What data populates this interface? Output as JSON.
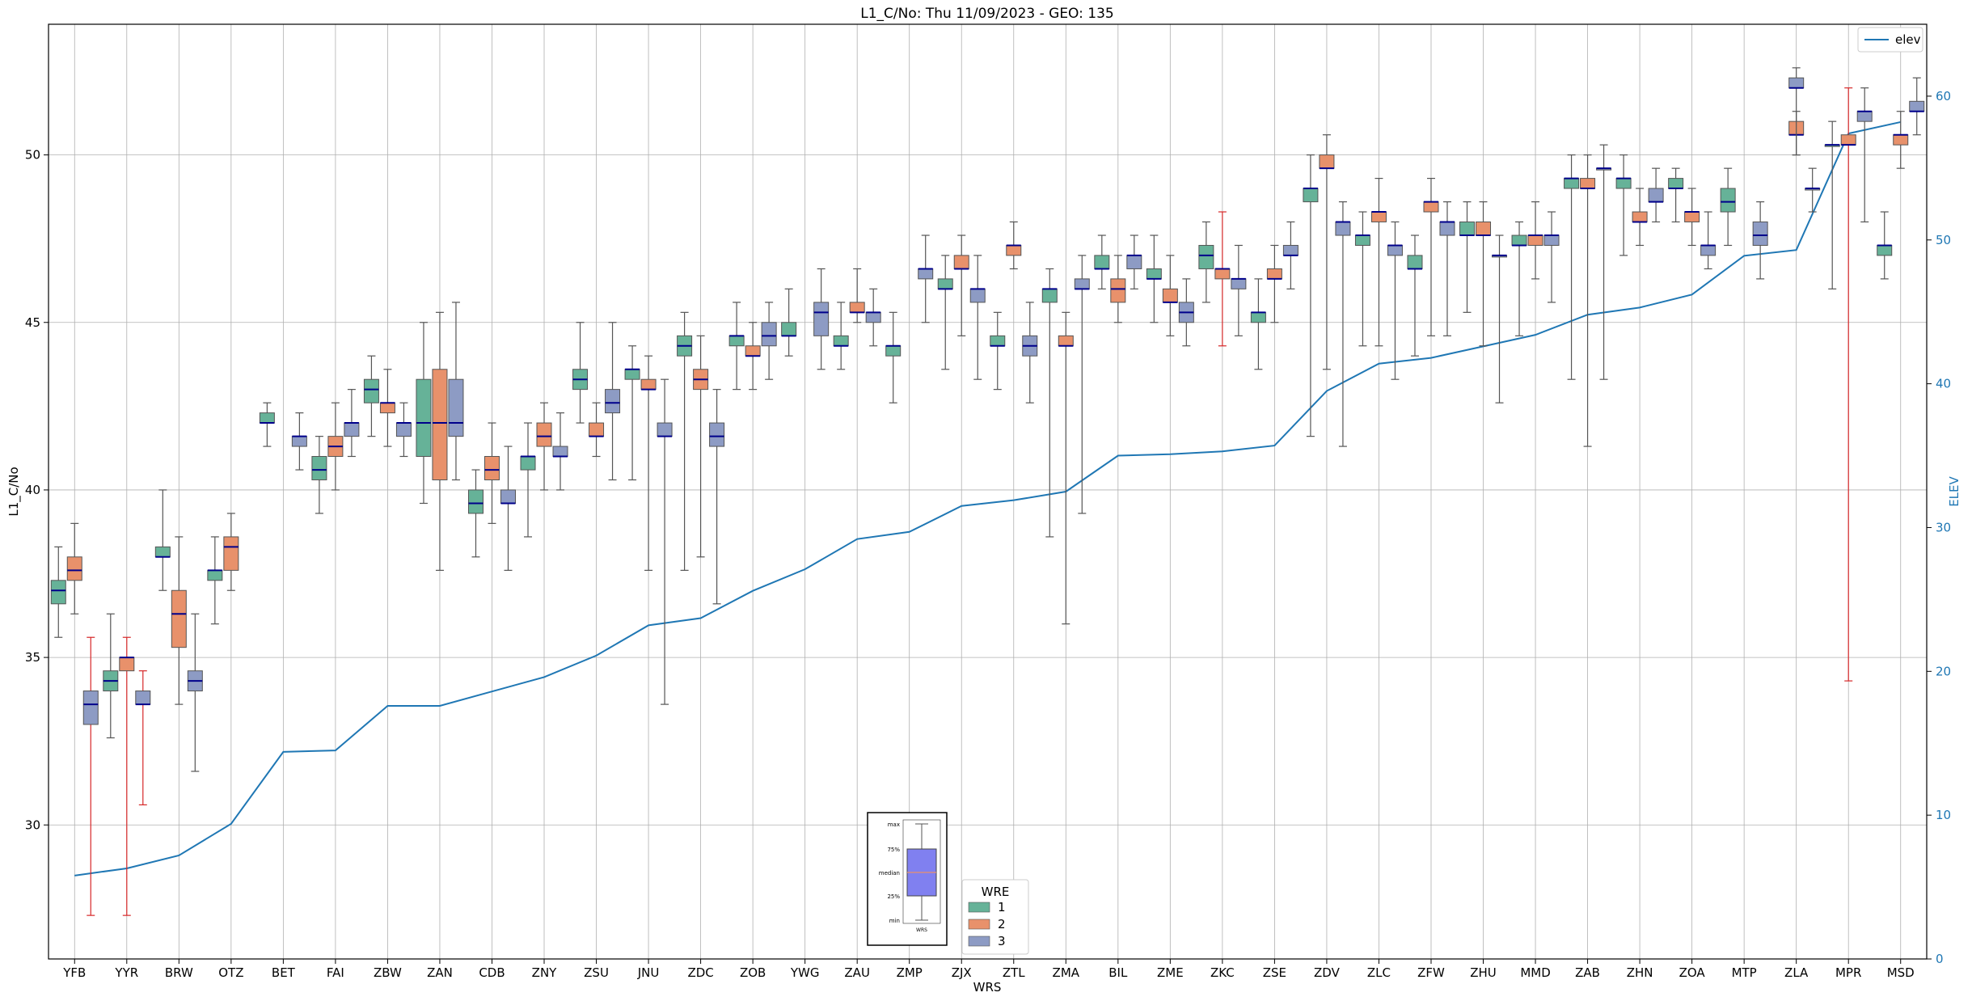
{
  "chart_data": {
    "type": "box",
    "title": "L1_C/No: Thu 11/09/2023 - GEO: 135",
    "xlabel": "WRS",
    "ylabel": "L1_C/No",
    "y2label": "ELEV",
    "ylim": [
      26.0,
      53.9
    ],
    "y2lim": [
      0,
      65
    ],
    "yticks": [
      30,
      35,
      40,
      45,
      50
    ],
    "y2ticks": [
      0,
      10,
      20,
      30,
      40,
      50,
      60
    ],
    "grid": true,
    "colors": {
      "wre1": "#66b298",
      "wre2": "#e8916b",
      "wre3": "#8d9bc4",
      "elev": "#1f77b4",
      "median": "#00008b",
      "whisker": "#555555",
      "whisker_alt": "#d62728"
    },
    "categories": [
      "YFB",
      "YYR",
      "BRW",
      "OTZ",
      "BET",
      "FAI",
      "ZBW",
      "ZAN",
      "CDB",
      "ZNY",
      "ZSU",
      "JNU",
      "ZDC",
      "ZOB",
      "YWG",
      "ZAU",
      "ZMP",
      "ZJX",
      "ZTL",
      "ZMA",
      "BIL",
      "ZME",
      "ZKC",
      "ZSE",
      "ZDV",
      "ZLC",
      "ZFW",
      "ZHU",
      "MMD",
      "ZAB",
      "ZHN",
      "ZOA",
      "MTP",
      "ZLA",
      "MPR",
      "MSD"
    ],
    "elev": [
      5.8,
      6.3,
      7.2,
      9.4,
      14.4,
      14.5,
      17.6,
      17.6,
      18.6,
      19.6,
      21.1,
      23.2,
      23.7,
      25.6,
      27.1,
      29.2,
      29.7,
      31.5,
      31.9,
      32.5,
      35.0,
      35.1,
      35.3,
      35.7,
      39.5,
      41.4,
      41.8,
      42.6,
      43.4,
      44.8,
      45.3,
      46.2,
      48.9,
      49.3,
      57.4,
      58.2
    ],
    "series": [
      {
        "name": "1",
        "boxes": [
          {
            "cat": 0,
            "min": 35.6,
            "q1": 36.6,
            "med": 37.0,
            "q3": 37.3,
            "max": 38.3
          },
          {
            "cat": 1,
            "min": 32.6,
            "q1": 34.0,
            "med": 34.3,
            "q3": 34.6,
            "max": 36.3
          },
          {
            "cat": 2,
            "min": 37.0,
            "q1": 38.0,
            "med": 38.0,
            "q3": 38.3,
            "max": 40.0
          },
          {
            "cat": 3,
            "min": 36.0,
            "q1": 37.3,
            "med": 37.6,
            "q3": 37.6,
            "max": 38.6
          },
          {
            "cat": 4,
            "min": 41.3,
            "q1": 42.0,
            "med": 42.0,
            "q3": 42.3,
            "max": 42.6
          },
          {
            "cat": 5,
            "min": 39.3,
            "q1": 40.3,
            "med": 40.6,
            "q3": 41.0,
            "max": 41.6
          },
          {
            "cat": 6,
            "min": 41.6,
            "q1": 42.6,
            "med": 43.0,
            "q3": 43.3,
            "max": 44.0
          },
          {
            "cat": 7,
            "min": 39.6,
            "q1": 41.0,
            "med": 42.0,
            "q3": 43.3,
            "max": 45.0
          },
          {
            "cat": 8,
            "min": 38.0,
            "q1": 39.3,
            "med": 39.6,
            "q3": 40.0,
            "max": 40.6
          },
          {
            "cat": 9,
            "min": 38.6,
            "q1": 40.6,
            "med": 41.0,
            "q3": 41.0,
            "max": 42.0
          },
          {
            "cat": 10,
            "min": 42.0,
            "q1": 43.0,
            "med": 43.3,
            "q3": 43.6,
            "max": 45.0
          },
          {
            "cat": 11,
            "min": 40.3,
            "q1": 43.3,
            "med": 43.6,
            "q3": 43.6,
            "max": 44.3
          },
          {
            "cat": 12,
            "min": 37.6,
            "q1": 44.0,
            "med": 44.3,
            "q3": 44.6,
            "max": 45.3
          },
          {
            "cat": 13,
            "min": 43.0,
            "q1": 44.3,
            "med": 44.6,
            "q3": 44.6,
            "max": 45.6
          },
          {
            "cat": 14,
            "min": 44.0,
            "q1": 44.6,
            "med": 44.6,
            "q3": 45.0,
            "max": 46.0
          },
          {
            "cat": 15,
            "min": 43.6,
            "q1": 44.3,
            "med": 44.3,
            "q3": 44.6,
            "max": 45.6
          },
          {
            "cat": 16,
            "min": 42.6,
            "q1": 44.0,
            "med": 44.3,
            "q3": 44.3,
            "max": 45.3
          },
          {
            "cat": 17,
            "min": 43.6,
            "q1": 46.0,
            "med": 46.0,
            "q3": 46.3,
            "max": 47.0
          },
          {
            "cat": 18,
            "min": 43.0,
            "q1": 44.3,
            "med": 44.3,
            "q3": 44.6,
            "max": 45.3
          },
          {
            "cat": 19,
            "min": 38.6,
            "q1": 45.6,
            "med": 46.0,
            "q3": 46.0,
            "max": 46.6
          },
          {
            "cat": 20,
            "min": 46.0,
            "q1": 46.6,
            "med": 46.6,
            "q3": 47.0,
            "max": 47.6
          },
          {
            "cat": 21,
            "min": 45.0,
            "q1": 46.3,
            "med": 46.3,
            "q3": 46.6,
            "max": 47.6
          },
          {
            "cat": 22,
            "min": 45.6,
            "q1": 46.6,
            "med": 47.0,
            "q3": 47.3,
            "max": 48.0
          },
          {
            "cat": 23,
            "min": 43.6,
            "q1": 45.0,
            "med": 45.3,
            "q3": 45.3,
            "max": 46.3
          },
          {
            "cat": 24,
            "min": 41.6,
            "q1": 48.6,
            "med": 49.0,
            "q3": 49.0,
            "max": 50.0
          },
          {
            "cat": 25,
            "min": 44.3,
            "q1": 47.3,
            "med": 47.6,
            "q3": 47.6,
            "max": 48.3
          },
          {
            "cat": 26,
            "min": 44.0,
            "q1": 46.6,
            "med": 46.6,
            "q3": 47.0,
            "max": 47.6
          },
          {
            "cat": 27,
            "min": 45.3,
            "q1": 47.6,
            "med": 47.6,
            "q3": 48.0,
            "max": 48.6
          },
          {
            "cat": 28,
            "min": 44.6,
            "q1": 47.3,
            "med": 47.3,
            "q3": 47.6,
            "max": 48.0
          },
          {
            "cat": 29,
            "min": 43.3,
            "q1": 49.0,
            "med": 49.3,
            "q3": 49.3,
            "max": 50.0
          },
          {
            "cat": 30,
            "min": 47.0,
            "q1": 49.0,
            "med": 49.3,
            "q3": 49.3,
            "max": 50.0
          },
          {
            "cat": 31,
            "min": 48.0,
            "q1": 49.0,
            "med": 49.0,
            "q3": 49.3,
            "max": 49.6
          },
          {
            "cat": 32,
            "min": 47.3,
            "q1": 48.3,
            "med": 48.6,
            "q3": 49.0,
            "max": 49.6
          },
          {
            "cat": 34,
            "min": 46.0,
            "q1": 50.3,
            "med": 50.3,
            "q3": 50.3,
            "max": 51.0
          },
          {
            "cat": 35,
            "min": 46.3,
            "q1": 47.0,
            "med": 47.3,
            "q3": 47.3,
            "max": 48.3
          }
        ]
      },
      {
        "name": "2",
        "boxes": [
          {
            "cat": 0,
            "min": 36.3,
            "q1": 37.3,
            "med": 37.6,
            "q3": 38.0,
            "max": 39.0
          },
          {
            "cat": 1,
            "min": 27.3,
            "q1": 34.6,
            "med": 35.0,
            "q3": 35.0,
            "max": 35.6,
            "alt": true
          },
          {
            "cat": 2,
            "min": 33.6,
            "q1": 35.3,
            "med": 36.3,
            "q3": 37.0,
            "max": 38.6
          },
          {
            "cat": 3,
            "min": 37.0,
            "q1": 37.6,
            "med": 38.3,
            "q3": 38.6,
            "max": 39.3
          },
          {
            "cat": 5,
            "min": 40.0,
            "q1": 41.0,
            "med": 41.3,
            "q3": 41.6,
            "max": 42.6
          },
          {
            "cat": 6,
            "min": 41.3,
            "q1": 42.3,
            "med": 42.6,
            "q3": 42.6,
            "max": 43.6
          },
          {
            "cat": 7,
            "min": 37.6,
            "q1": 40.3,
            "med": 42.0,
            "q3": 43.6,
            "max": 45.3
          },
          {
            "cat": 8,
            "min": 39.0,
            "q1": 40.3,
            "med": 40.6,
            "q3": 41.0,
            "max": 42.0
          },
          {
            "cat": 9,
            "min": 40.0,
            "q1": 41.3,
            "med": 41.6,
            "q3": 42.0,
            "max": 42.6
          },
          {
            "cat": 10,
            "min": 41.0,
            "q1": 41.6,
            "med": 41.6,
            "q3": 42.0,
            "max": 42.6
          },
          {
            "cat": 11,
            "min": 37.6,
            "q1": 43.0,
            "med": 43.0,
            "q3": 43.3,
            "max": 44.0
          },
          {
            "cat": 12,
            "min": 38.0,
            "q1": 43.0,
            "med": 43.3,
            "q3": 43.6,
            "max": 44.6
          },
          {
            "cat": 13,
            "min": 43.0,
            "q1": 44.0,
            "med": 44.0,
            "q3": 44.3,
            "max": 45.0
          },
          {
            "cat": 15,
            "min": 45.0,
            "q1": 45.3,
            "med": 45.3,
            "q3": 45.6,
            "max": 46.6
          },
          {
            "cat": 17,
            "min": 44.6,
            "q1": 46.6,
            "med": 46.6,
            "q3": 47.0,
            "max": 47.6
          },
          {
            "cat": 18,
            "min": 46.6,
            "q1": 47.0,
            "med": 47.3,
            "q3": 47.3,
            "max": 48.0
          },
          {
            "cat": 19,
            "min": 36.0,
            "q1": 44.3,
            "med": 44.3,
            "q3": 44.6,
            "max": 45.3
          },
          {
            "cat": 20,
            "min": 45.0,
            "q1": 45.6,
            "med": 46.0,
            "q3": 46.3,
            "max": 47.0
          },
          {
            "cat": 21,
            "min": 44.6,
            "q1": 45.6,
            "med": 45.6,
            "q3": 46.0,
            "max": 47.0
          },
          {
            "cat": 22,
            "min": 44.3,
            "q1": 46.3,
            "med": 46.6,
            "q3": 46.6,
            "max": 48.3,
            "alt": true
          },
          {
            "cat": 23,
            "min": 45.0,
            "q1": 46.3,
            "med": 46.3,
            "q3": 46.6,
            "max": 47.3
          },
          {
            "cat": 24,
            "min": 43.6,
            "q1": 49.6,
            "med": 49.6,
            "q3": 50.0,
            "max": 50.6
          },
          {
            "cat": 25,
            "min": 44.3,
            "q1": 48.0,
            "med": 48.3,
            "q3": 48.3,
            "max": 49.3
          },
          {
            "cat": 26,
            "min": 44.6,
            "q1": 48.3,
            "med": 48.6,
            "q3": 48.6,
            "max": 49.3
          },
          {
            "cat": 27,
            "min": 44.3,
            "q1": 47.6,
            "med": 47.6,
            "q3": 48.0,
            "max": 48.6
          },
          {
            "cat": 28,
            "min": 46.3,
            "q1": 47.3,
            "med": 47.6,
            "q3": 47.6,
            "max": 48.6
          },
          {
            "cat": 29,
            "min": 41.3,
            "q1": 49.0,
            "med": 49.0,
            "q3": 49.3,
            "max": 50.0
          },
          {
            "cat": 30,
            "min": 47.3,
            "q1": 48.0,
            "med": 48.0,
            "q3": 48.3,
            "max": 49.0
          },
          {
            "cat": 31,
            "min": 47.3,
            "q1": 48.0,
            "med": 48.3,
            "q3": 48.3,
            "max": 49.0
          },
          {
            "cat": 33,
            "min": 50.0,
            "q1": 50.6,
            "med": 50.6,
            "q3": 51.0,
            "max": 51.3
          },
          {
            "cat": 34,
            "min": 34.3,
            "q1": 50.3,
            "med": 50.3,
            "q3": 50.6,
            "max": 52.0,
            "alt": true
          },
          {
            "cat": 35,
            "min": 49.6,
            "q1": 50.3,
            "med": 50.6,
            "q3": 50.6,
            "max": 51.3
          }
        ]
      },
      {
        "name": "3",
        "boxes": [
          {
            "cat": 0,
            "min": 27.3,
            "q1": 33.0,
            "med": 33.6,
            "q3": 34.0,
            "max": 35.6,
            "alt": true
          },
          {
            "cat": 1,
            "min": 30.6,
            "q1": 33.6,
            "med": 33.6,
            "q3": 34.0,
            "max": 34.6,
            "alt": true
          },
          {
            "cat": 2,
            "min": 31.6,
            "q1": 34.0,
            "med": 34.3,
            "q3": 34.6,
            "max": 36.3
          },
          {
            "cat": 4,
            "min": 40.6,
            "q1": 41.3,
            "med": 41.6,
            "q3": 41.6,
            "max": 42.3
          },
          {
            "cat": 5,
            "min": 41.0,
            "q1": 41.6,
            "med": 42.0,
            "q3": 42.0,
            "max": 43.0
          },
          {
            "cat": 6,
            "min": 41.0,
            "q1": 41.6,
            "med": 42.0,
            "q3": 42.0,
            "max": 42.6
          },
          {
            "cat": 7,
            "min": 40.3,
            "q1": 41.6,
            "med": 42.0,
            "q3": 43.3,
            "max": 45.6
          },
          {
            "cat": 8,
            "min": 37.6,
            "q1": 39.6,
            "med": 39.6,
            "q3": 40.0,
            "max": 41.3
          },
          {
            "cat": 9,
            "min": 40.0,
            "q1": 41.0,
            "med": 41.0,
            "q3": 41.3,
            "max": 42.3
          },
          {
            "cat": 10,
            "min": 40.3,
            "q1": 42.3,
            "med": 42.6,
            "q3": 43.0,
            "max": 45.0
          },
          {
            "cat": 11,
            "min": 33.6,
            "q1": 41.6,
            "med": 41.6,
            "q3": 42.0,
            "max": 43.3
          },
          {
            "cat": 12,
            "min": 36.6,
            "q1": 41.3,
            "med": 41.6,
            "q3": 42.0,
            "max": 43.0
          },
          {
            "cat": 13,
            "min": 43.3,
            "q1": 44.3,
            "med": 44.6,
            "q3": 45.0,
            "max": 45.6
          },
          {
            "cat": 14,
            "min": 43.6,
            "q1": 44.6,
            "med": 45.3,
            "q3": 45.6,
            "max": 46.6
          },
          {
            "cat": 15,
            "min": 44.3,
            "q1": 45.0,
            "med": 45.3,
            "q3": 45.3,
            "max": 46.0
          },
          {
            "cat": 16,
            "min": 45.0,
            "q1": 46.3,
            "med": 46.6,
            "q3": 46.6,
            "max": 47.6
          },
          {
            "cat": 17,
            "min": 43.3,
            "q1": 45.6,
            "med": 46.0,
            "q3": 46.0,
            "max": 47.0
          },
          {
            "cat": 18,
            "min": 42.6,
            "q1": 44.0,
            "med": 44.3,
            "q3": 44.6,
            "max": 45.6
          },
          {
            "cat": 19,
            "min": 39.3,
            "q1": 46.0,
            "med": 46.0,
            "q3": 46.3,
            "max": 47.0
          },
          {
            "cat": 20,
            "min": 46.0,
            "q1": 46.6,
            "med": 47.0,
            "q3": 47.0,
            "max": 47.6
          },
          {
            "cat": 21,
            "min": 44.3,
            "q1": 45.0,
            "med": 45.3,
            "q3": 45.6,
            "max": 46.3
          },
          {
            "cat": 22,
            "min": 44.6,
            "q1": 46.0,
            "med": 46.3,
            "q3": 46.3,
            "max": 47.3
          },
          {
            "cat": 23,
            "min": 46.0,
            "q1": 47.0,
            "med": 47.0,
            "q3": 47.3,
            "max": 48.0
          },
          {
            "cat": 24,
            "min": 41.3,
            "q1": 47.6,
            "med": 48.0,
            "q3": 48.0,
            "max": 48.6
          },
          {
            "cat": 25,
            "min": 43.3,
            "q1": 47.0,
            "med": 47.3,
            "q3": 47.3,
            "max": 48.0
          },
          {
            "cat": 26,
            "min": 44.6,
            "q1": 47.6,
            "med": 48.0,
            "q3": 48.0,
            "max": 48.6
          },
          {
            "cat": 27,
            "min": 42.6,
            "q1": 47.0,
            "med": 47.0,
            "q3": 47.0,
            "max": 47.6
          },
          {
            "cat": 28,
            "min": 45.6,
            "q1": 47.3,
            "med": 47.6,
            "q3": 47.6,
            "max": 48.3
          },
          {
            "cat": 29,
            "min": 43.3,
            "q1": 49.6,
            "med": 49.6,
            "q3": 49.6,
            "max": 50.3
          },
          {
            "cat": 30,
            "min": 48.0,
            "q1": 48.6,
            "med": 48.6,
            "q3": 49.0,
            "max": 49.6
          },
          {
            "cat": 31,
            "min": 46.6,
            "q1": 47.0,
            "med": 47.3,
            "q3": 47.3,
            "max": 48.3
          },
          {
            "cat": 32,
            "min": 46.3,
            "q1": 47.3,
            "med": 47.6,
            "q3": 48.0,
            "max": 48.6
          },
          {
            "cat": 33,
            "min": 48.3,
            "q1": 49.0,
            "med": 49.0,
            "q3": 49.0,
            "max": 49.6
          },
          {
            "cat": 33,
            "min": 50.0,
            "q1": 52.0,
            "med": 52.0,
            "q3": 52.3,
            "max": 52.6,
            "slot": 1
          },
          {
            "cat": 34,
            "min": 48.0,
            "q1": 51.0,
            "med": 51.3,
            "q3": 51.3,
            "max": 52.0
          },
          {
            "cat": 35,
            "min": 50.6,
            "q1": 51.3,
            "med": 51.3,
            "q3": 51.6,
            "max": 52.3
          }
        ]
      }
    ],
    "legend": {
      "title": "WRE",
      "placement": "lower-center",
      "entries": [
        "1",
        "2",
        "3"
      ]
    },
    "legend_elev": {
      "label": "elev",
      "placement": "top-right"
    },
    "key": {
      "labels": [
        "max",
        "75%",
        "median",
        "25%",
        "min"
      ],
      "xlabel": "WRS"
    }
  }
}
